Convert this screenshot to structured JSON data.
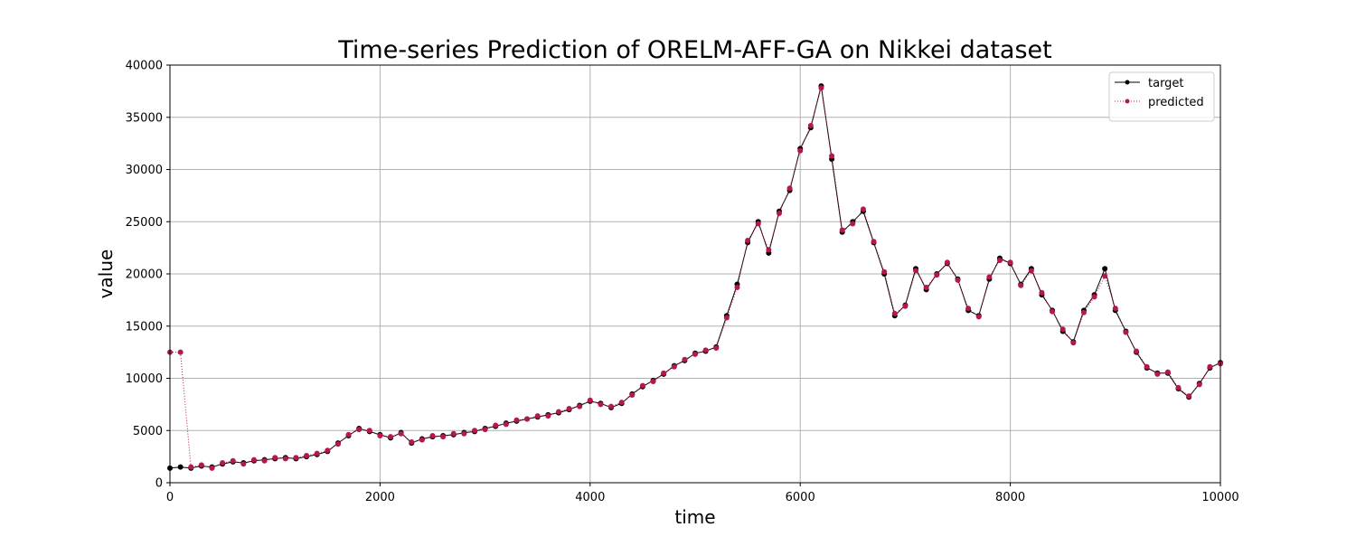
{
  "chart_data": {
    "type": "line",
    "title": "Time-series Prediction of ORELM-AFF-GA on Nikkei dataset",
    "x_label": "time",
    "y_label": "value",
    "x": [
      0,
      100,
      200,
      300,
      400,
      500,
      600,
      700,
      800,
      900,
      1000,
      1100,
      1200,
      1300,
      1400,
      1500,
      1600,
      1700,
      1800,
      1900,
      2000,
      2100,
      2200,
      2300,
      2400,
      2500,
      2600,
      2700,
      2800,
      2900,
      3000,
      3100,
      3200,
      3300,
      3400,
      3500,
      3600,
      3700,
      3800,
      3900,
      4000,
      4100,
      4200,
      4300,
      4400,
      4500,
      4600,
      4700,
      4800,
      4900,
      5000,
      5100,
      5200,
      5300,
      5400,
      5500,
      5600,
      5700,
      5800,
      5900,
      6000,
      6100,
      6200,
      6300,
      6400,
      6500,
      6600,
      6700,
      6800,
      6900,
      7000,
      7100,
      7200,
      7300,
      7400,
      7500,
      7600,
      7700,
      7800,
      7900,
      8000,
      8100,
      8200,
      8300,
      8400,
      8500,
      8600,
      8700,
      8800,
      8900,
      9000,
      9100,
      9200,
      9300,
      9400,
      9500,
      9600,
      9700,
      9800,
      9900,
      10000
    ],
    "series": [
      {
        "name": "target",
        "color": "#000000",
        "line": "solid",
        "values": [
          1400,
          1500,
          1400,
          1600,
          1500,
          1800,
          2000,
          1900,
          2100,
          2200,
          2300,
          2400,
          2300,
          2500,
          2700,
          3000,
          3800,
          4500,
          5200,
          4900,
          4600,
          4300,
          4800,
          3800,
          4200,
          4400,
          4500,
          4600,
          4800,
          4900,
          5200,
          5400,
          5700,
          5900,
          6100,
          6300,
          6500,
          6700,
          7000,
          7400,
          7800,
          7600,
          7200,
          7600,
          8500,
          9200,
          9800,
          10400,
          11200,
          11700,
          12400,
          12600,
          13000,
          16000,
          19000,
          23000,
          25000,
          22000,
          26000,
          28000,
          32000,
          34000,
          38000,
          31000,
          24000,
          25000,
          26000,
          23000,
          20000,
          16000,
          17000,
          20500,
          18500,
          20000,
          21000,
          19500,
          16500,
          16000,
          19500,
          21500,
          21000,
          19000,
          20500,
          18000,
          16500,
          14500,
          13500,
          16500,
          18000,
          20500,
          16500,
          14500,
          12500,
          11000,
          10500,
          10500,
          9000,
          8200,
          9500,
          11000,
          11500
        ]
      },
      {
        "name": "predicted",
        "color": "#b5174f",
        "line": "dotted",
        "values": [
          12500,
          12500,
          1500,
          1700,
          1400,
          1900,
          2100,
          1800,
          2200,
          2100,
          2400,
          2300,
          2400,
          2600,
          2800,
          3100,
          3700,
          4600,
          5100,
          5000,
          4500,
          4400,
          4700,
          3900,
          4100,
          4500,
          4400,
          4700,
          4700,
          5000,
          5100,
          5500,
          5600,
          6000,
          6100,
          6400,
          6400,
          6800,
          7100,
          7300,
          7900,
          7500,
          7300,
          7700,
          8400,
          9300,
          9700,
          10500,
          11100,
          11800,
          12300,
          12700,
          12900,
          15800,
          18700,
          23200,
          24800,
          22300,
          25800,
          28200,
          31800,
          34200,
          37800,
          31300,
          24200,
          24800,
          26200,
          23100,
          20200,
          16200,
          16900,
          20300,
          18700,
          19900,
          21100,
          19400,
          16700,
          15900,
          19700,
          21300,
          21100,
          18900,
          20300,
          18200,
          16400,
          14700,
          13400,
          16300,
          17800,
          19800,
          16700,
          14400,
          12600,
          11100,
          10400,
          10600,
          9100,
          8300,
          9400,
          11100,
          11400
        ]
      }
    ],
    "xlim": [
      0,
      10000
    ],
    "ylim": [
      0,
      40000
    ],
    "xticks": [
      0,
      2000,
      4000,
      6000,
      8000,
      10000
    ],
    "yticks": [
      0,
      5000,
      10000,
      15000,
      20000,
      25000,
      30000,
      35000,
      40000
    ],
    "grid": true,
    "legend": "upper right"
  }
}
